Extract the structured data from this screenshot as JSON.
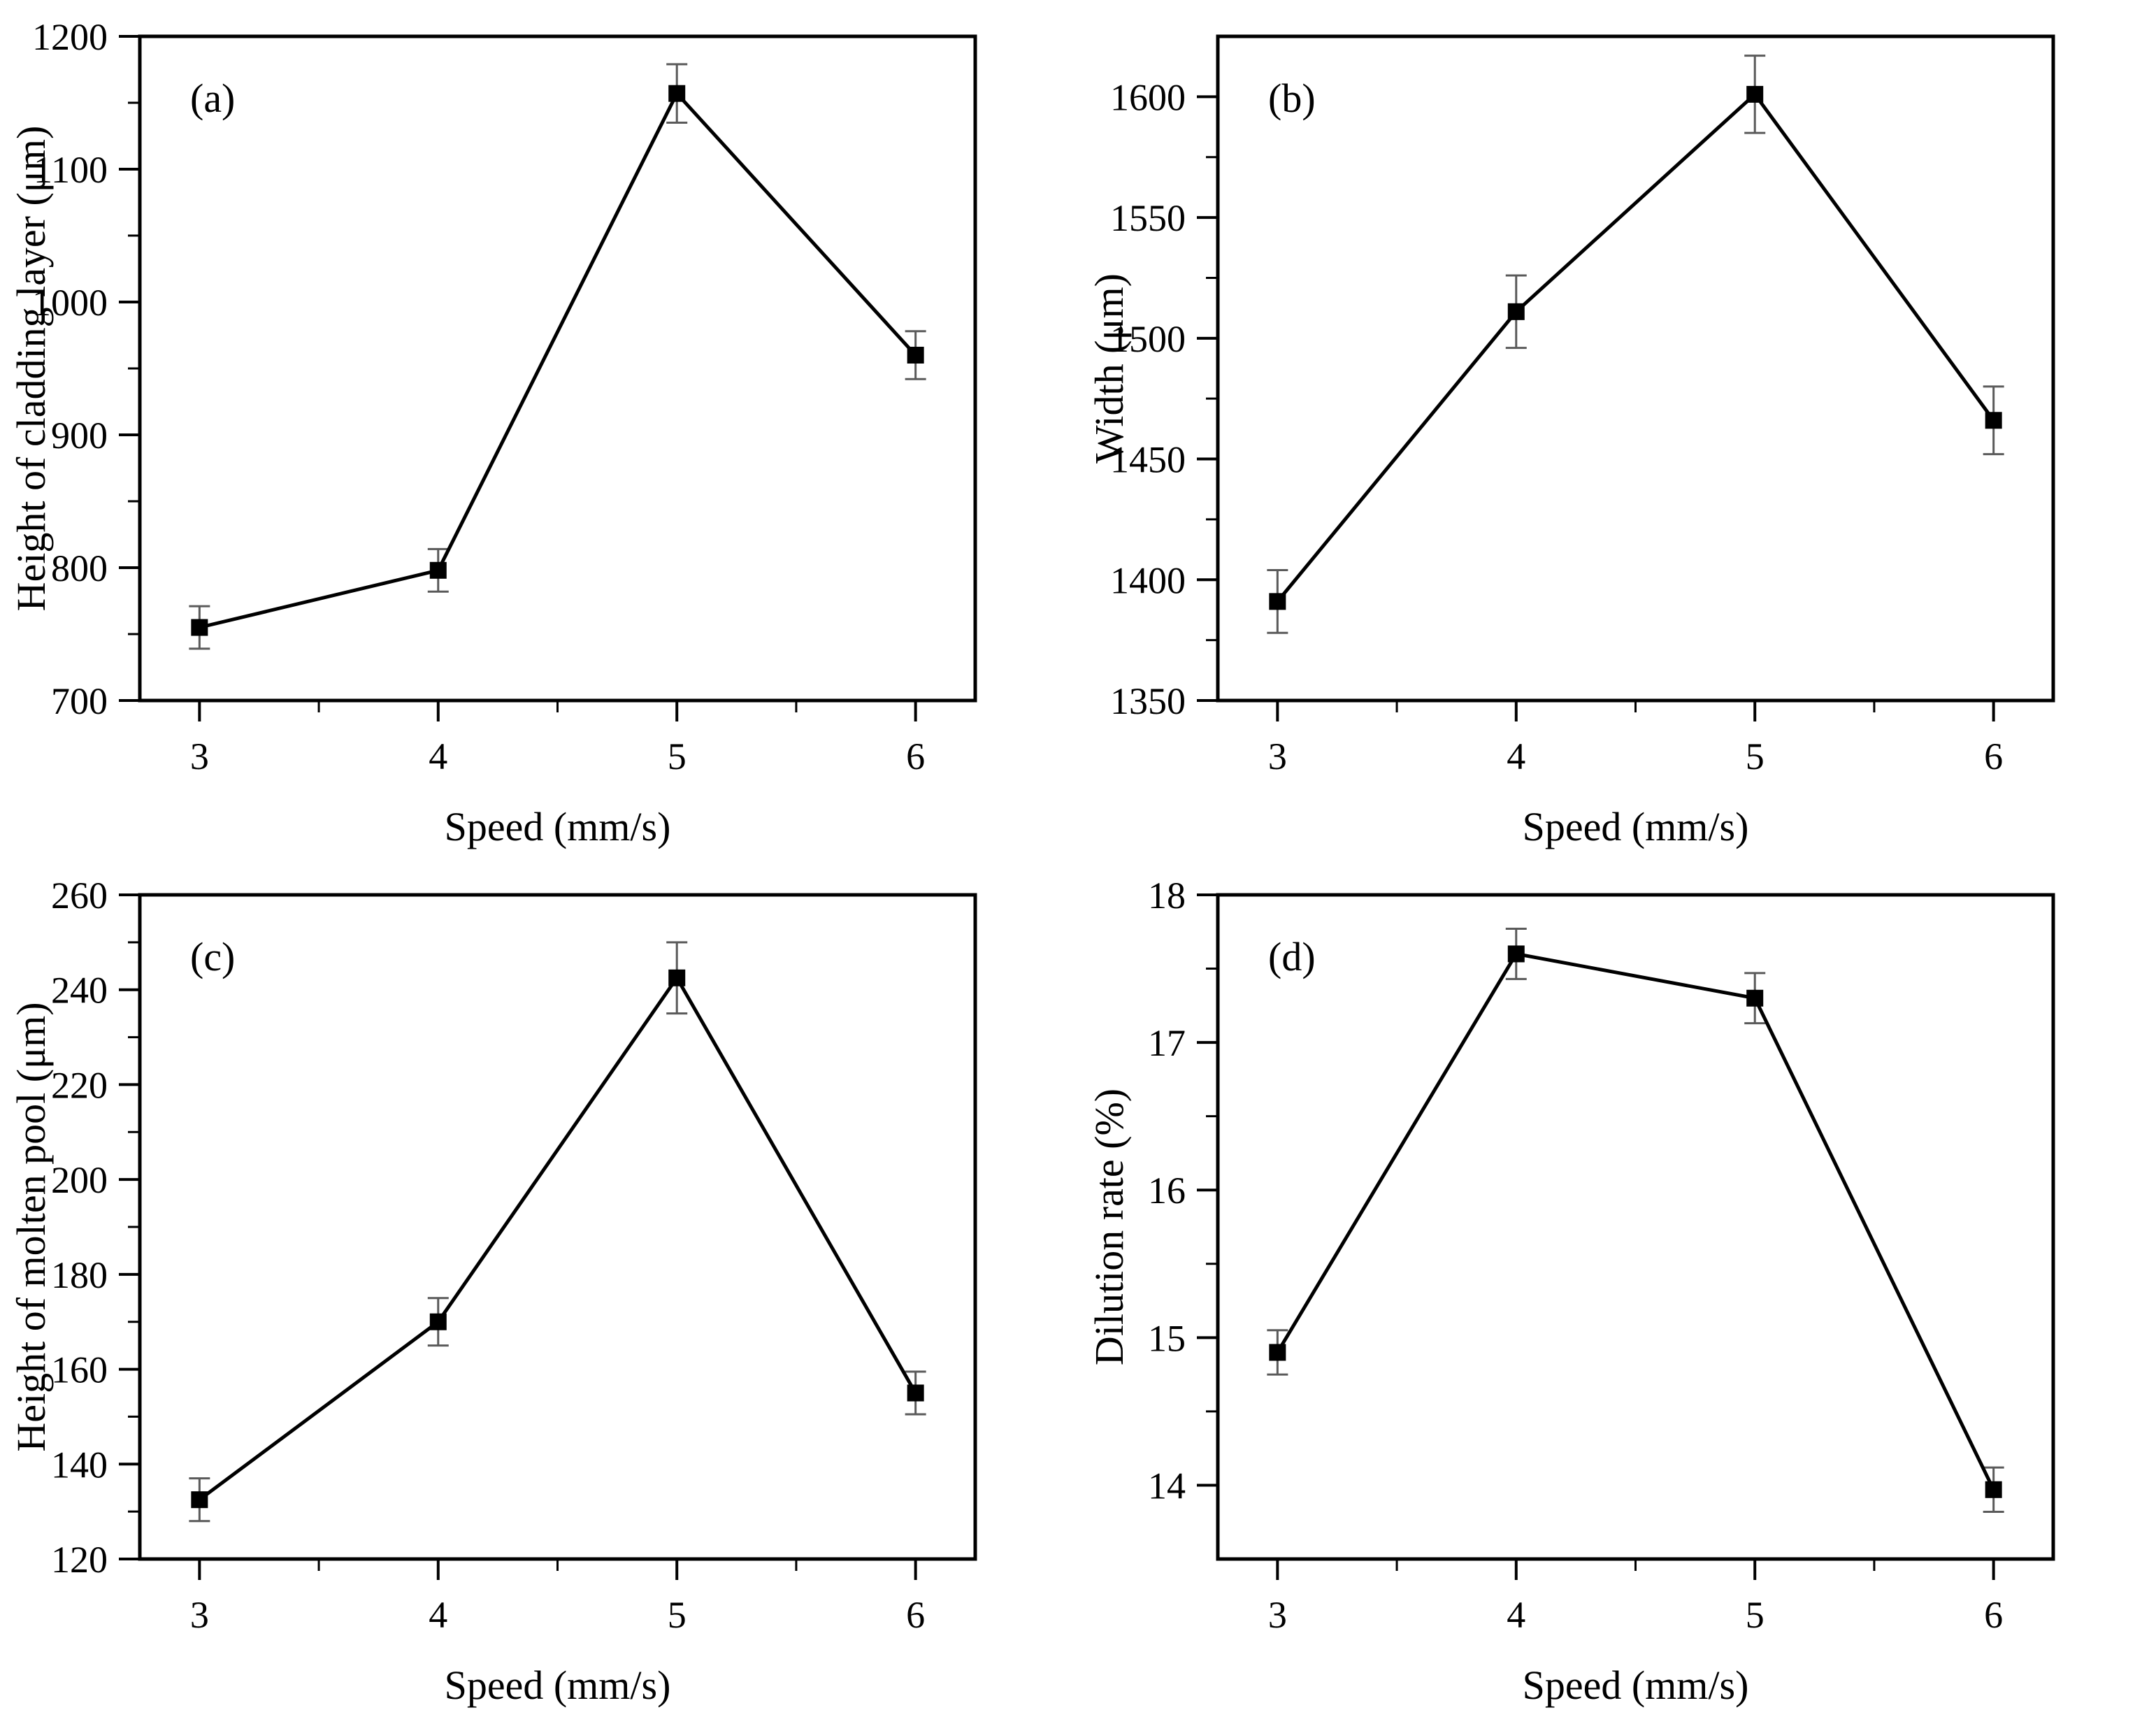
{
  "figure": {
    "background": "#ffffff",
    "line_color": "#000000",
    "marker_color": "#000000",
    "error_bar_color": "#5a5a5a",
    "marker_shape": "square"
  },
  "chart_data": [
    {
      "type": "line",
      "panel_label": "(a)",
      "ylabel": "Height of cladding layer (μm)",
      "xlabel": "Speed (mm/s)",
      "x": [
        3,
        4,
        5,
        6
      ],
      "values": [
        755,
        798,
        1157,
        960
      ],
      "yerr": [
        16,
        16,
        22,
        18
      ],
      "ylim": [
        700,
        1200
      ],
      "ymajors": [
        700,
        800,
        900,
        1000,
        1100,
        1200
      ],
      "yminor_step": 50,
      "xlim": [
        2.75,
        6.25
      ],
      "xmajors": [
        3,
        4,
        5,
        6
      ],
      "xminors": [
        3.5,
        4.5,
        5.5
      ],
      "grid": "off",
      "legend": "none"
    },
    {
      "type": "line",
      "panel_label": "(b)",
      "ylabel": "Width (μm)",
      "xlabel": "Speed (mm/s)",
      "x": [
        3,
        4,
        5,
        6
      ],
      "values": [
        1391,
        1511,
        1601,
        1466
      ],
      "yerr": [
        13,
        15,
        16,
        14
      ],
      "ylim": [
        1350,
        1625
      ],
      "ymajors": [
        1350,
        1400,
        1450,
        1500,
        1550,
        1600
      ],
      "yminor_step": 25,
      "xlim": [
        2.75,
        6.25
      ],
      "xmajors": [
        3,
        4,
        5,
        6
      ],
      "xminors": [
        3.5,
        4.5,
        5.5
      ],
      "grid": "off",
      "legend": "none"
    },
    {
      "type": "line",
      "panel_label": "(c)",
      "ylabel": "Height of molten pool (μm)",
      "xlabel": "Speed (mm/s)",
      "x": [
        3,
        4,
        5,
        6
      ],
      "values": [
        132.5,
        170,
        242.5,
        155
      ],
      "yerr": [
        4.5,
        5,
        7.5,
        4.5
      ],
      "ylim": [
        120,
        260
      ],
      "ymajors": [
        120,
        140,
        160,
        180,
        200,
        220,
        240,
        260
      ],
      "yminor_step": 10,
      "xlim": [
        2.75,
        6.25
      ],
      "xmajors": [
        3,
        4,
        5,
        6
      ],
      "xminors": [
        3.5,
        4.5,
        5.5
      ],
      "grid": "off",
      "legend": "none"
    },
    {
      "type": "line",
      "panel_label": "(d)",
      "ylabel": "Dilution rate (%)",
      "xlabel": "Speed (mm/s)",
      "x": [
        3,
        4,
        5,
        6
      ],
      "values": [
        14.9,
        17.6,
        17.3,
        13.97
      ],
      "yerr": [
        0.15,
        0.17,
        0.17,
        0.15
      ],
      "ylim": [
        13.5,
        18
      ],
      "ymajors": [
        14,
        15,
        16,
        17,
        18
      ],
      "yminor_step": 0.5,
      "xlim": [
        2.75,
        6.25
      ],
      "xmajors": [
        3,
        4,
        5,
        6
      ],
      "xminors": [
        3.5,
        4.5,
        5.5
      ],
      "grid": "off",
      "legend": "none"
    }
  ]
}
